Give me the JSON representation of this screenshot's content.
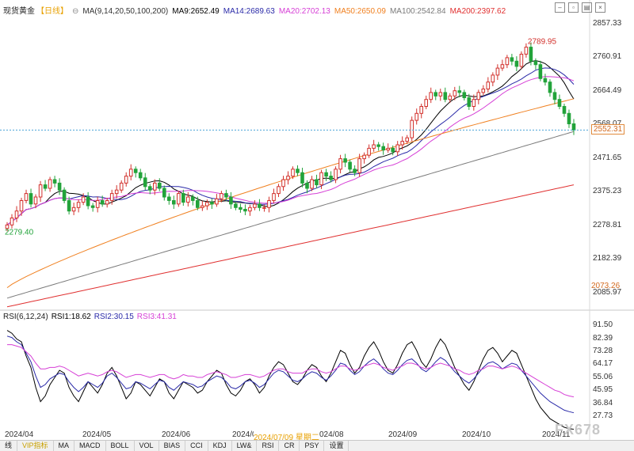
{
  "header": {
    "instrument": "现货黄金",
    "period": "【日线】",
    "ma_params": "MA(9,14,20,50,100,200)",
    "ma9": "MA9:2652.49",
    "ma14": "MA14:2689.63",
    "ma20": "MA20:2702.13",
    "ma50": "MA50:2650.09",
    "ma100": "MA100:2542.84",
    "ma200": "MA200:2397.62"
  },
  "colors": {
    "up": "#d2302b",
    "down": "#22a33a",
    "ma9": "#000000",
    "ma14": "#2a2aa8",
    "ma20": "#d63fd6",
    "ma50": "#f08020",
    "ma100": "#7a7a7a",
    "ma200": "#e03030",
    "rsi1": "#000000",
    "rsi2": "#2a2aa8",
    "rsi3": "#d63fd6"
  },
  "price_axis": [
    "2857.33",
    "2760.91",
    "2664.49",
    "2568.07",
    "2471.65",
    "2375.23",
    "2278.81",
    "2182.39",
    "2085.97"
  ],
  "current_price": "2552.31",
  "ma200_tag": "2073.26",
  "high_label": "2789.95",
  "low_label": "2279.40",
  "rsi": {
    "title": "RSI(6,12,24)",
    "rsi1": "RSI1:18.62",
    "rsi2": "RSI2:30.15",
    "rsi3": "RSI3:41.31",
    "axis": [
      "91.50",
      "82.39",
      "73.28",
      "64.17",
      "55.06",
      "45.95",
      "36.84",
      "27.73"
    ]
  },
  "x_axis": [
    "2024/04",
    "2024/05",
    "2024/06",
    "2024/0",
    "2024/07/09 星期二",
    "024/08",
    "2024/09",
    "2024/10",
    "2024/11"
  ],
  "bottom_tabs": [
    "线",
    "VIP指标",
    "MA",
    "MACD",
    "BOLL",
    "VOL",
    "BIAS",
    "CCI",
    "KDJ",
    "LW&",
    "RSI",
    "CR",
    "PSY",
    "设置"
  ],
  "watermark": "FX678",
  "chart_data": {
    "type": "candlestick",
    "title": "现货黄金 日线",
    "ylim": [
      2040,
      2880
    ],
    "high": 2789.95,
    "low": 2279.4,
    "last": 2552.31,
    "closes": [
      2280,
      2300,
      2320,
      2350,
      2370,
      2340,
      2360,
      2395,
      2385,
      2410,
      2400,
      2380,
      2350,
      2320,
      2330,
      2345,
      2360,
      2335,
      2330,
      2350,
      2340,
      2350,
      2370,
      2380,
      2400,
      2420,
      2440,
      2430,
      2415,
      2390,
      2380,
      2400,
      2385,
      2360,
      2350,
      2340,
      2370,
      2345,
      2360,
      2350,
      2330,
      2335,
      2345,
      2340,
      2355,
      2370,
      2360,
      2340,
      2330,
      2325,
      2320,
      2330,
      2340,
      2330,
      2330,
      2350,
      2370,
      2390,
      2410,
      2420,
      2440,
      2430,
      2400,
      2385,
      2410,
      2395,
      2430,
      2420,
      2410,
      2440,
      2470,
      2460,
      2440,
      2430,
      2470,
      2480,
      2500,
      2510,
      2505,
      2495,
      2500,
      2490,
      2510,
      2520,
      2530,
      2580,
      2600,
      2620,
      2640,
      2660,
      2650,
      2660,
      2640,
      2650,
      2665,
      2660,
      2645,
      2620,
      2640,
      2660,
      2670,
      2690,
      2710,
      2730,
      2740,
      2760,
      2750,
      2735,
      2770,
      2790,
      2750,
      2740,
      2700,
      2690,
      2660,
      2640,
      2620,
      2600,
      2570,
      2552
    ],
    "rsi1": [
      88,
      86,
      82,
      80,
      70,
      62,
      48,
      38,
      42,
      50,
      55,
      60,
      58,
      48,
      42,
      38,
      45,
      52,
      48,
      44,
      50,
      58,
      62,
      56,
      48,
      40,
      44,
      52,
      50,
      46,
      42,
      48,
      54,
      52,
      44,
      40,
      46,
      52,
      50,
      48,
      44,
      46,
      52,
      56,
      60,
      58,
      50,
      44,
      42,
      46,
      52,
      54,
      50,
      44,
      48,
      56,
      62,
      66,
      64,
      58,
      52,
      50,
      54,
      60,
      64,
      62,
      56,
      52,
      58,
      66,
      74,
      72,
      64,
      58,
      62,
      70,
      76,
      80,
      74,
      66,
      60,
      58,
      64,
      72,
      78,
      80,
      74,
      66,
      62,
      68,
      76,
      82,
      78,
      70,
      62,
      56,
      50,
      46,
      52,
      60,
      68,
      74,
      76,
      72,
      66,
      70,
      74,
      72,
      64,
      56,
      48,
      40,
      34,
      30,
      26,
      24,
      22,
      20,
      19,
      18.6
    ],
    "rsi2": [
      84,
      83,
      80,
      78,
      72,
      66,
      56,
      48,
      50,
      54,
      56,
      58,
      57,
      52,
      48,
      45,
      48,
      52,
      50,
      48,
      51,
      56,
      58,
      55,
      51,
      47,
      48,
      52,
      51,
      49,
      47,
      50,
      53,
      52,
      48,
      46,
      49,
      52,
      51,
      50,
      48,
      49,
      52,
      54,
      56,
      55,
      52,
      48,
      47,
      49,
      52,
      53,
      51,
      48,
      50,
      54,
      58,
      60,
      59,
      56,
      53,
      52,
      54,
      57,
      59,
      58,
      55,
      53,
      56,
      60,
      65,
      64,
      60,
      57,
      59,
      63,
      66,
      68,
      65,
      61,
      58,
      57,
      60,
      64,
      67,
      68,
      65,
      61,
      59,
      62,
      66,
      69,
      67,
      63,
      59,
      56,
      53,
      51,
      54,
      58,
      62,
      65,
      66,
      64,
      61,
      63,
      65,
      64,
      60,
      56,
      52,
      48,
      44,
      41,
      38,
      36,
      34,
      32,
      31,
      30.15
    ],
    "rsi3": [
      78,
      78,
      77,
      76,
      73,
      70,
      65,
      61,
      61,
      62,
      62,
      63,
      62,
      60,
      58,
      56,
      57,
      58,
      57,
      56,
      57,
      59,
      60,
      59,
      57,
      55,
      56,
      57,
      57,
      56,
      55,
      56,
      57,
      57,
      55,
      54,
      55,
      57,
      56,
      56,
      55,
      55,
      57,
      58,
      59,
      58,
      57,
      55,
      55,
      56,
      57,
      57,
      56,
      55,
      56,
      58,
      60,
      61,
      61,
      59,
      58,
      58,
      58,
      60,
      61,
      61,
      59,
      58,
      59,
      61,
      63,
      63,
      61,
      60,
      61,
      63,
      64,
      65,
      64,
      62,
      61,
      60,
      62,
      63,
      65,
      65,
      64,
      62,
      61,
      62,
      64,
      65,
      64,
      63,
      61,
      60,
      58,
      57,
      58,
      60,
      61,
      63,
      63,
      62,
      61,
      62,
      63,
      62,
      60,
      58,
      56,
      54,
      52,
      50,
      48,
      46,
      45,
      43,
      42,
      41.31
    ]
  }
}
